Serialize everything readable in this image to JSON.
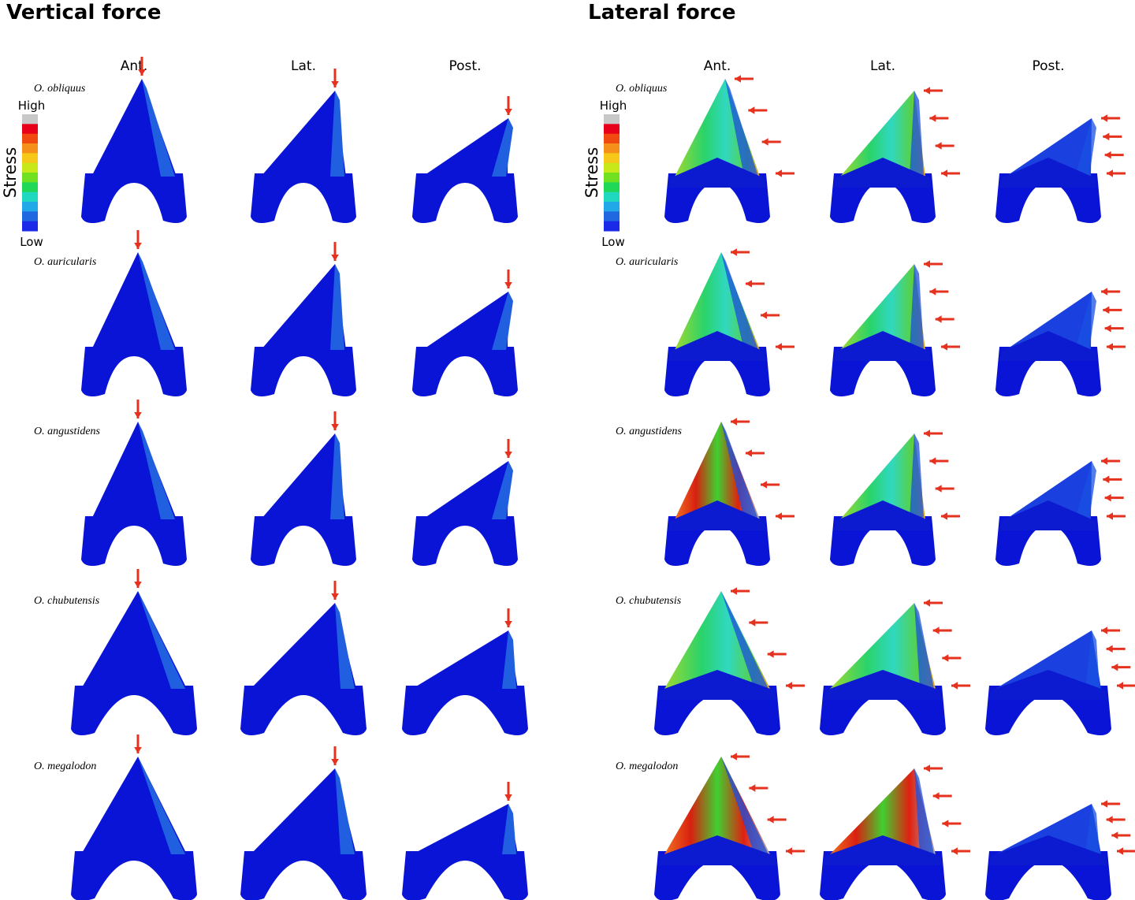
{
  "panels": [
    {
      "title": "Vertical force",
      "columns": [
        "Ant.",
        "Lat.",
        "Post."
      ],
      "rows": [
        "O. obliquus",
        "O. auricularis",
        "O. angustidens",
        "O. chubutensis",
        "O. megalodon"
      ],
      "legend": {
        "label": "Stress",
        "high": "High",
        "low": "Low"
      }
    },
    {
      "title": "Lateral force",
      "columns": [
        "Ant.",
        "Lat.",
        "Post."
      ],
      "rows": [
        "O. obliquus",
        "O. auricularis",
        "O. angustidens",
        "O. chubutensis",
        "O. megalodon"
      ],
      "legend": {
        "label": "Stress",
        "high": "High",
        "low": "Low"
      }
    }
  ]
}
